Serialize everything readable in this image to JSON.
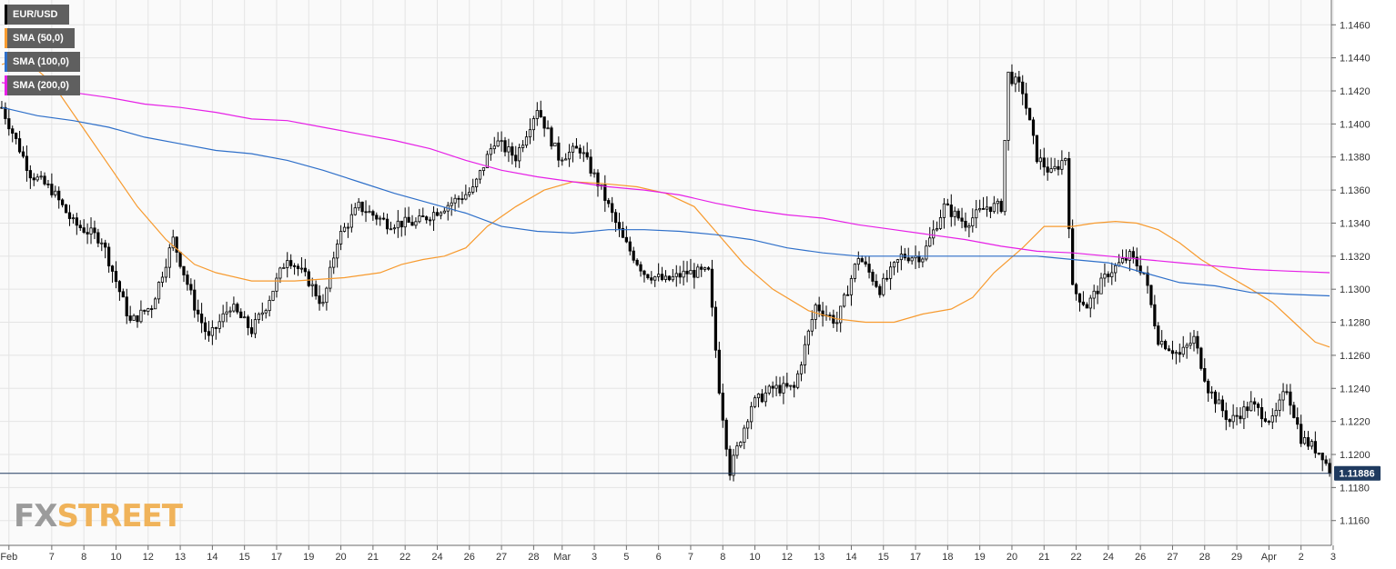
{
  "colors": {
    "background": "#ffffff",
    "plot_background": "#fafafa",
    "grid": "#e4e4e4",
    "axis": "#6b6b6b",
    "candle_up_fill": "#ffffff",
    "candle_down_fill": "#000000",
    "candle_outline": "#000000",
    "price_line": "#1f3a5f",
    "price_tag_bg": "#1f3a5f"
  },
  "legend": [
    {
      "label": "EUR/USD",
      "color": "#000000"
    },
    {
      "label": "SMA (50,0)",
      "color": "#f79a2e"
    },
    {
      "label": "SMA (100,0)",
      "color": "#2e6fc9"
    },
    {
      "label": "SMA (200,0)",
      "color": "#e61fe6"
    }
  ],
  "watermark": {
    "part1": "FX",
    "part2": "STREET"
  },
  "chart_data": {
    "type": "candlestick",
    "symbol": "EUR/USD",
    "ylim": [
      1.1145,
      1.1475
    ],
    "y_ticks": [
      "1.1160",
      "1.1180",
      "1.1200",
      "1.1220",
      "1.1240",
      "1.1260",
      "1.1280",
      "1.1300",
      "1.1320",
      "1.1340",
      "1.1360",
      "1.1380",
      "1.1400",
      "1.1420",
      "1.1440",
      "1.1460"
    ],
    "x_ticks": [
      {
        "label": "Feb",
        "i": 2
      },
      {
        "label": "7",
        "i": 14
      },
      {
        "label": "8",
        "i": 23
      },
      {
        "label": "10",
        "i": 32
      },
      {
        "label": "12",
        "i": 41
      },
      {
        "label": "13",
        "i": 50
      },
      {
        "label": "14",
        "i": 59
      },
      {
        "label": "15",
        "i": 68
      },
      {
        "label": "17",
        "i": 77
      },
      {
        "label": "19",
        "i": 86
      },
      {
        "label": "20",
        "i": 95
      },
      {
        "label": "21",
        "i": 104
      },
      {
        "label": "22",
        "i": 113
      },
      {
        "label": "24",
        "i": 122
      },
      {
        "label": "26",
        "i": 131
      },
      {
        "label": "27",
        "i": 140
      },
      {
        "label": "28",
        "i": 149
      },
      {
        "label": "Mar",
        "i": 157
      },
      {
        "label": "3",
        "i": 166
      },
      {
        "label": "5",
        "i": 175
      },
      {
        "label": "6",
        "i": 184
      },
      {
        "label": "7",
        "i": 193
      },
      {
        "label": "8",
        "i": 202
      },
      {
        "label": "10",
        "i": 211
      },
      {
        "label": "12",
        "i": 220
      },
      {
        "label": "13",
        "i": 229
      },
      {
        "label": "14",
        "i": 238
      },
      {
        "label": "15",
        "i": 247
      },
      {
        "label": "17",
        "i": 256
      },
      {
        "label": "18",
        "i": 265
      },
      {
        "label": "19",
        "i": 274
      },
      {
        "label": "20",
        "i": 283
      },
      {
        "label": "21",
        "i": 292
      },
      {
        "label": "22",
        "i": 301
      },
      {
        "label": "24",
        "i": 310
      },
      {
        "label": "26",
        "i": 319
      },
      {
        "label": "27",
        "i": 328
      },
      {
        "label": "28",
        "i": 337
      },
      {
        "label": "29",
        "i": 346
      },
      {
        "label": "Apr",
        "i": 355
      },
      {
        "label": "2",
        "i": 364
      },
      {
        "label": "3",
        "i": 373
      }
    ],
    "last_price": "1.11886",
    "last_price_value": 1.11886,
    "anchors": [
      [
        0,
        1.141
      ],
      [
        8,
        1.137
      ],
      [
        14,
        1.136
      ],
      [
        20,
        1.134
      ],
      [
        28,
        1.133
      ],
      [
        36,
        1.128
      ],
      [
        42,
        1.129
      ],
      [
        48,
        1.133
      ],
      [
        54,
        1.129
      ],
      [
        58,
        1.127
      ],
      [
        64,
        1.129
      ],
      [
        70,
        1.1275
      ],
      [
        74,
        1.129
      ],
      [
        80,
        1.132
      ],
      [
        86,
        1.1305
      ],
      [
        90,
        1.129
      ],
      [
        94,
        1.133
      ],
      [
        100,
        1.135
      ],
      [
        108,
        1.134
      ],
      [
        116,
        1.134
      ],
      [
        124,
        1.135
      ],
      [
        132,
        1.136
      ],
      [
        138,
        1.139
      ],
      [
        144,
        1.138
      ],
      [
        150,
        1.141
      ],
      [
        156,
        1.138
      ],
      [
        162,
        1.1385
      ],
      [
        168,
        1.136
      ],
      [
        174,
        1.133
      ],
      [
        180,
        1.131
      ],
      [
        186,
        1.1305
      ],
      [
        192,
        1.131
      ],
      [
        198,
        1.131
      ],
      [
        201,
        1.124
      ],
      [
        204,
        1.119
      ],
      [
        210,
        1.123
      ],
      [
        216,
        1.124
      ],
      [
        222,
        1.124
      ],
      [
        228,
        1.129
      ],
      [
        234,
        1.128
      ],
      [
        240,
        1.132
      ],
      [
        246,
        1.13
      ],
      [
        252,
        1.132
      ],
      [
        258,
        1.132
      ],
      [
        264,
        1.135
      ],
      [
        270,
        1.134
      ],
      [
        276,
        1.135
      ],
      [
        280,
        1.135
      ],
      [
        282,
        1.143
      ],
      [
        286,
        1.142
      ],
      [
        290,
        1.138
      ],
      [
        294,
        1.137
      ],
      [
        298,
        1.138
      ],
      [
        300,
        1.13
      ],
      [
        304,
        1.129
      ],
      [
        310,
        1.131
      ],
      [
        316,
        1.132
      ],
      [
        320,
        1.131
      ],
      [
        324,
        1.127
      ],
      [
        330,
        1.126
      ],
      [
        334,
        1.127
      ],
      [
        338,
        1.124
      ],
      [
        344,
        1.122
      ],
      [
        350,
        1.123
      ],
      [
        356,
        1.122
      ],
      [
        360,
        1.124
      ],
      [
        364,
        1.121
      ],
      [
        370,
        1.12
      ],
      [
        372,
        1.1189
      ]
    ],
    "sma_50": [
      [
        0,
        1.1436
      ],
      [
        6,
        1.144
      ],
      [
        14,
        1.1425
      ],
      [
        22,
        1.14
      ],
      [
        30,
        1.1375
      ],
      [
        38,
        1.135
      ],
      [
        46,
        1.133
      ],
      [
        54,
        1.1315
      ],
      [
        60,
        1.131
      ],
      [
        70,
        1.1305
      ],
      [
        82,
        1.1305
      ],
      [
        96,
        1.1307
      ],
      [
        106,
        1.131
      ],
      [
        112,
        1.1315
      ],
      [
        118,
        1.1318
      ],
      [
        124,
        1.132
      ],
      [
        130,
        1.1325
      ],
      [
        136,
        1.1338
      ],
      [
        144,
        1.135
      ],
      [
        152,
        1.136
      ],
      [
        160,
        1.1365
      ],
      [
        168,
        1.1364
      ],
      [
        178,
        1.1362
      ],
      [
        186,
        1.1358
      ],
      [
        194,
        1.135
      ],
      [
        200,
        1.1335
      ],
      [
        208,
        1.1315
      ],
      [
        216,
        1.13
      ],
      [
        226,
        1.1287
      ],
      [
        234,
        1.1282
      ],
      [
        242,
        1.128
      ],
      [
        250,
        1.128
      ],
      [
        258,
        1.1285
      ],
      [
        266,
        1.1288
      ],
      [
        272,
        1.1295
      ],
      [
        278,
        1.131
      ],
      [
        286,
        1.1325
      ],
      [
        292,
        1.1338
      ],
      [
        300,
        1.1338
      ],
      [
        306,
        1.134
      ],
      [
        312,
        1.1341
      ],
      [
        318,
        1.134
      ],
      [
        324,
        1.1336
      ],
      [
        330,
        1.1328
      ],
      [
        336,
        1.1318
      ],
      [
        342,
        1.131
      ],
      [
        350,
        1.13
      ],
      [
        356,
        1.1292
      ],
      [
        362,
        1.128
      ],
      [
        368,
        1.1268
      ],
      [
        372,
        1.1265
      ]
    ],
    "sma_100": [
      [
        0,
        1.141
      ],
      [
        10,
        1.1405
      ],
      [
        20,
        1.1402
      ],
      [
        30,
        1.1398
      ],
      [
        40,
        1.1392
      ],
      [
        50,
        1.1388
      ],
      [
        60,
        1.1384
      ],
      [
        70,
        1.1382
      ],
      [
        80,
        1.1378
      ],
      [
        90,
        1.1372
      ],
      [
        100,
        1.1365
      ],
      [
        110,
        1.1358
      ],
      [
        120,
        1.1352
      ],
      [
        130,
        1.1346
      ],
      [
        140,
        1.1338
      ],
      [
        150,
        1.1335
      ],
      [
        160,
        1.1334
      ],
      [
        170,
        1.1336
      ],
      [
        180,
        1.1336
      ],
      [
        190,
        1.1335
      ],
      [
        200,
        1.1333
      ],
      [
        210,
        1.133
      ],
      [
        220,
        1.1325
      ],
      [
        230,
        1.1322
      ],
      [
        240,
        1.132
      ],
      [
        250,
        1.132
      ],
      [
        260,
        1.132
      ],
      [
        270,
        1.132
      ],
      [
        280,
        1.132
      ],
      [
        290,
        1.132
      ],
      [
        300,
        1.1318
      ],
      [
        310,
        1.1316
      ],
      [
        320,
        1.131
      ],
      [
        330,
        1.1304
      ],
      [
        340,
        1.1302
      ],
      [
        350,
        1.1298
      ],
      [
        360,
        1.1297
      ],
      [
        372,
        1.1296
      ]
    ],
    "sma_200": [
      [
        0,
        1.1425
      ],
      [
        10,
        1.1422
      ],
      [
        20,
        1.1419
      ],
      [
        30,
        1.1416
      ],
      [
        40,
        1.1412
      ],
      [
        50,
        1.141
      ],
      [
        60,
        1.1407
      ],
      [
        70,
        1.1403
      ],
      [
        80,
        1.1402
      ],
      [
        90,
        1.1398
      ],
      [
        100,
        1.1394
      ],
      [
        110,
        1.139
      ],
      [
        120,
        1.1385
      ],
      [
        130,
        1.1378
      ],
      [
        140,
        1.1372
      ],
      [
        150,
        1.1368
      ],
      [
        160,
        1.1365
      ],
      [
        170,
        1.1362
      ],
      [
        180,
        1.136
      ],
      [
        190,
        1.1357
      ],
      [
        200,
        1.1352
      ],
      [
        210,
        1.1348
      ],
      [
        220,
        1.1345
      ],
      [
        230,
        1.1343
      ],
      [
        240,
        1.1339
      ],
      [
        250,
        1.1336
      ],
      [
        260,
        1.1333
      ],
      [
        270,
        1.133
      ],
      [
        280,
        1.1326
      ],
      [
        290,
        1.1323
      ],
      [
        300,
        1.1322
      ],
      [
        310,
        1.132
      ],
      [
        320,
        1.1318
      ],
      [
        330,
        1.1316
      ],
      [
        340,
        1.1314
      ],
      [
        350,
        1.1312
      ],
      [
        360,
        1.1311
      ],
      [
        372,
        1.131
      ]
    ]
  }
}
